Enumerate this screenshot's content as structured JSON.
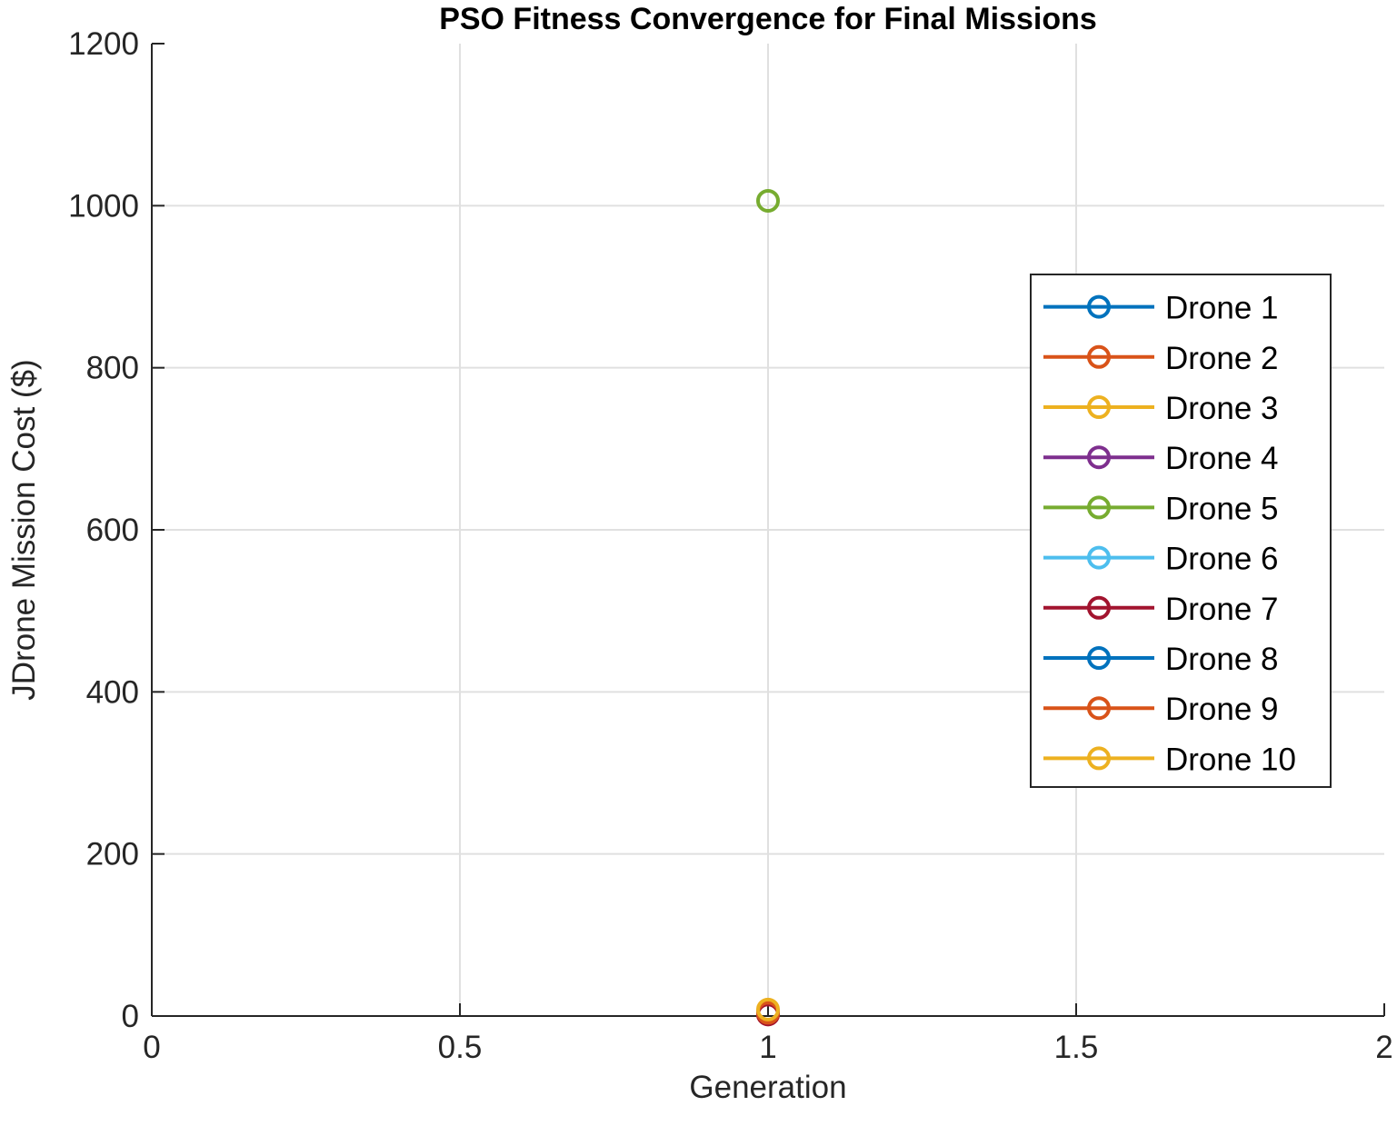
{
  "chart_data": {
    "type": "line",
    "title": "PSO Fitness Convergence for Final Missions",
    "xlabel": "Generation",
    "ylabel": "JDrone Mission Cost ($)",
    "xlim": [
      0,
      2
    ],
    "ylim": [
      0,
      1200
    ],
    "xticks": [
      0,
      0.5,
      1,
      1.5,
      2
    ],
    "xtick_labels": [
      "0",
      "0.5",
      "1",
      "1.5",
      "2"
    ],
    "yticks": [
      0,
      200,
      400,
      600,
      800,
      1000,
      1200
    ],
    "ytick_labels": [
      "0",
      "200",
      "400",
      "600",
      "800",
      "1000",
      "1200"
    ],
    "grid": true,
    "legend_position": "right",
    "series": [
      {
        "name": "Drone 1",
        "color": "#0072bd",
        "x": [
          1
        ],
        "y": [
          3
        ]
      },
      {
        "name": "Drone 2",
        "color": "#d95319",
        "x": [
          1
        ],
        "y": [
          2
        ]
      },
      {
        "name": "Drone 3",
        "color": "#edb120",
        "x": [
          1
        ],
        "y": [
          5
        ]
      },
      {
        "name": "Drone 4",
        "color": "#7e2f8e",
        "x": [
          1
        ],
        "y": [
          3
        ]
      },
      {
        "name": "Drone 5",
        "color": "#77ac30",
        "x": [
          1
        ],
        "y": [
          1006
        ]
      },
      {
        "name": "Drone 6",
        "color": "#4dbeee",
        "x": [
          1
        ],
        "y": [
          4
        ]
      },
      {
        "name": "Drone 7",
        "color": "#a2142f",
        "x": [
          1
        ],
        "y": [
          2
        ]
      },
      {
        "name": "Drone 8",
        "color": "#0072bd",
        "x": [
          1
        ],
        "y": [
          6
        ]
      },
      {
        "name": "Drone 9",
        "color": "#d95319",
        "x": [
          1
        ],
        "y": [
          4
        ]
      },
      {
        "name": "Drone 10",
        "color": "#edb120",
        "x": [
          1
        ],
        "y": [
          8
        ]
      }
    ]
  }
}
